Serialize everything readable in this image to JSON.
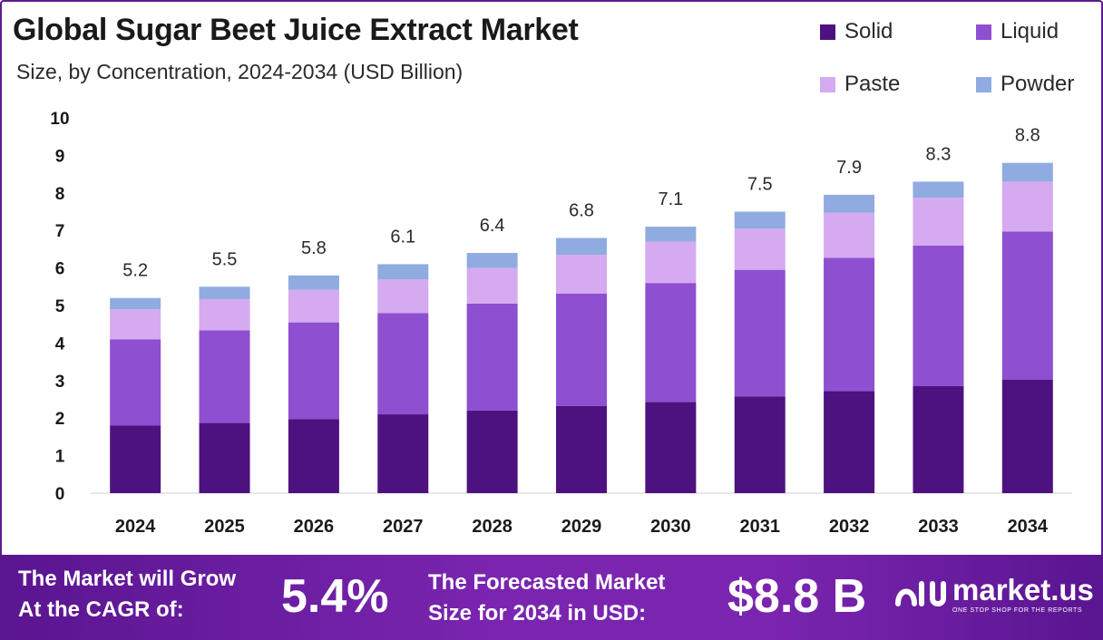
{
  "title": "Global Sugar Beet Juice Extract Market",
  "subtitle": "Size, by Concentration, 2024-2034 (USD Billion)",
  "colors": {
    "frame": "#5b1c8c",
    "solid": "#4e1280",
    "liquid": "#8e4fd0",
    "paste": "#d5aaf0",
    "powder": "#8fabe0",
    "footer": "#6e1fa5"
  },
  "legend": [
    {
      "label": "Solid",
      "color": "#4e1280"
    },
    {
      "label": "Liquid",
      "color": "#8e4fd0"
    },
    {
      "label": "Paste",
      "color": "#d5aaf0"
    },
    {
      "label": "Powder",
      "color": "#8fabe0"
    }
  ],
  "chart_data": {
    "type": "bar",
    "stacked": true,
    "categories": [
      "2024",
      "2025",
      "2026",
      "2027",
      "2028",
      "2029",
      "2030",
      "2031",
      "2032",
      "2033",
      "2034"
    ],
    "series": [
      {
        "name": "Solid",
        "values": [
          1.8,
          1.87,
          1.97,
          2.1,
          2.2,
          2.32,
          2.43,
          2.58,
          2.72,
          2.85,
          3.02
        ]
      },
      {
        "name": "Liquid",
        "values": [
          2.3,
          2.47,
          2.58,
          2.7,
          2.85,
          3.0,
          3.17,
          3.37,
          3.55,
          3.75,
          3.95
        ]
      },
      {
        "name": "Paste",
        "values": [
          0.8,
          0.83,
          0.87,
          0.9,
          0.95,
          1.03,
          1.1,
          1.1,
          1.2,
          1.27,
          1.33
        ]
      },
      {
        "name": "Powder",
        "values": [
          0.3,
          0.33,
          0.38,
          0.4,
          0.4,
          0.45,
          0.4,
          0.45,
          0.48,
          0.43,
          0.5
        ]
      }
    ],
    "totals": [
      "5.2",
      "5.5",
      "5.8",
      "6.1",
      "6.4",
      "6.8",
      "7.1",
      "7.5",
      "7.9",
      "8.3",
      "8.8"
    ],
    "ylim": [
      0,
      10
    ],
    "yticks": [
      "0",
      "1",
      "2",
      "3",
      "4",
      "5",
      "6",
      "7",
      "8",
      "9",
      "10"
    ],
    "grid": false,
    "legend_position": "top-right"
  },
  "footer": {
    "cagr_label": "The Market will Grow\nAt the CAGR of:",
    "cagr_value": "5.4%",
    "forecast_label": "The Forecasted Market\nSize for 2034 in USD:",
    "forecast_value": "$8.8 B",
    "brand_name": "market.us",
    "brand_tagline": "ONE STOP SHOP FOR THE REPORTS"
  }
}
